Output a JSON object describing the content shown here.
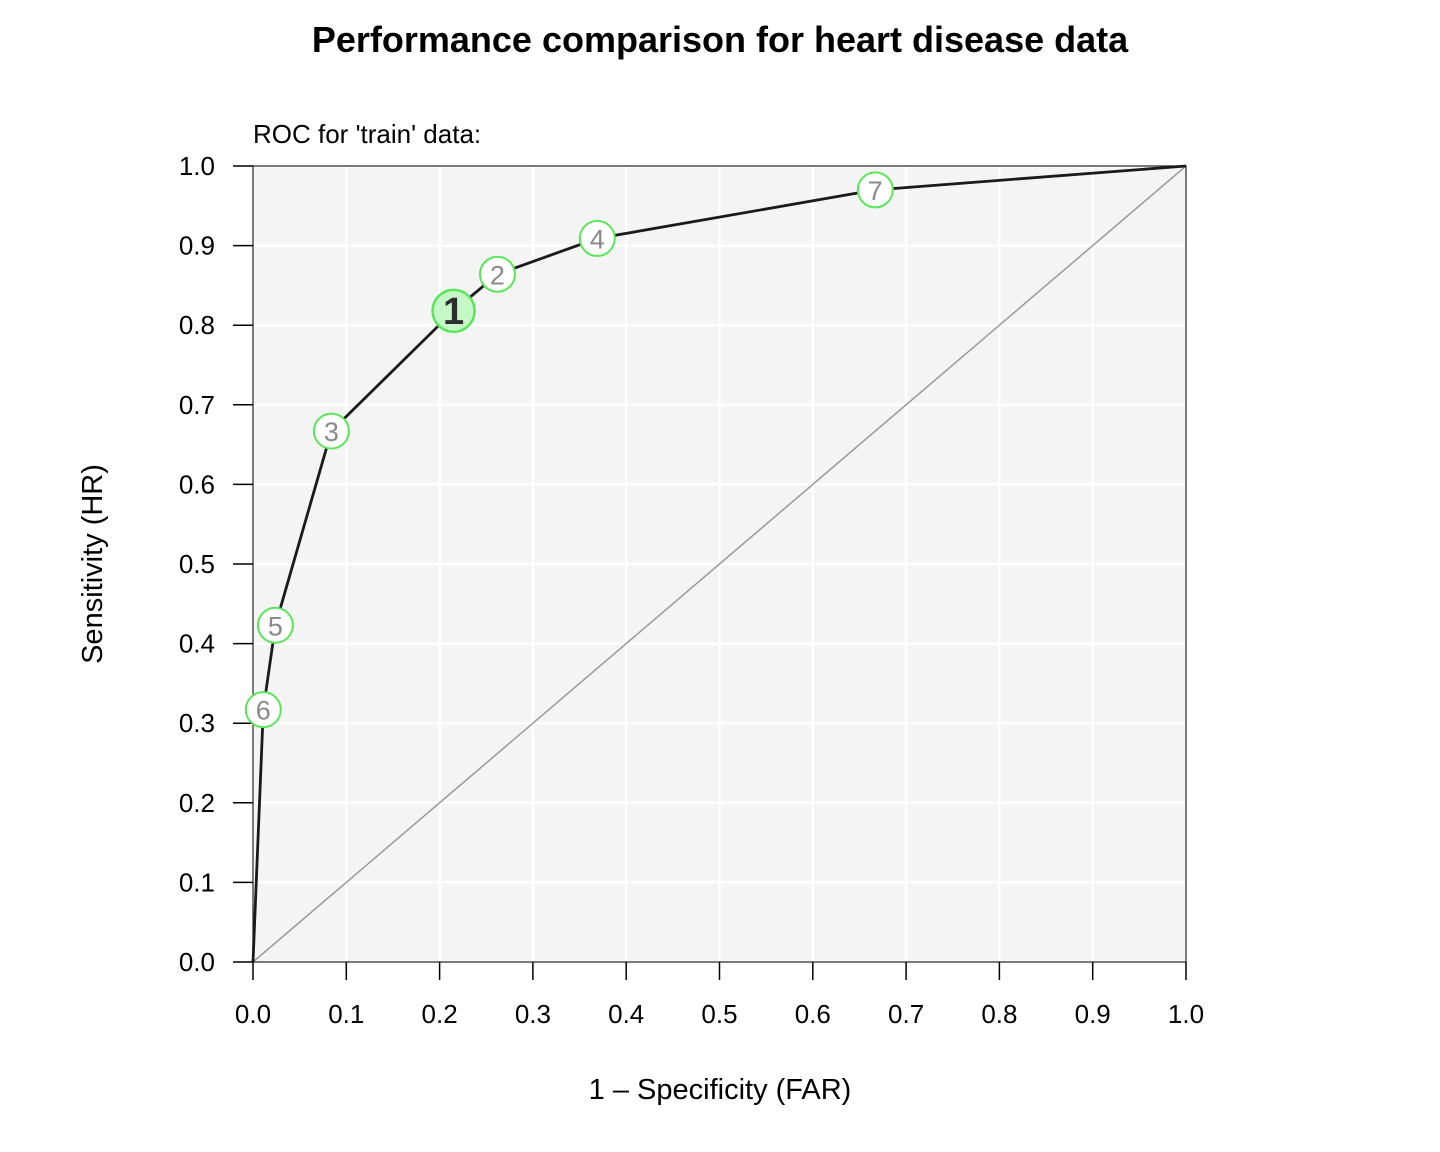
{
  "chart_data": {
    "type": "line",
    "title": "Performance comparison for heart disease data",
    "subtitle": "ROC for 'train' data:",
    "xlabel": "1 – Specificity (FAR)",
    "ylabel": "Sensitivity (HR)",
    "xlim": [
      0,
      1
    ],
    "ylim": [
      0,
      1
    ],
    "x_ticks": [
      "0.0",
      "0.1",
      "0.2",
      "0.3",
      "0.4",
      "0.5",
      "0.6",
      "0.7",
      "0.8",
      "0.9",
      "1.0"
    ],
    "y_ticks": [
      "0.0",
      "0.1",
      "0.2",
      "0.3",
      "0.4",
      "0.5",
      "0.6",
      "0.7",
      "0.8",
      "0.9",
      "1.0"
    ],
    "grid": true,
    "diagonal": true,
    "curve": [
      {
        "x": 0.0,
        "y": 0.0
      },
      {
        "x": 0.011,
        "y": 0.317
      },
      {
        "x": 0.024,
        "y": 0.423
      },
      {
        "x": 0.084,
        "y": 0.667
      },
      {
        "x": 0.215,
        "y": 0.818
      },
      {
        "x": 0.262,
        "y": 0.864
      },
      {
        "x": 0.369,
        "y": 0.909
      },
      {
        "x": 0.667,
        "y": 0.97
      },
      {
        "x": 1.0,
        "y": 1.0
      }
    ],
    "points": [
      {
        "label": "1",
        "x": 0.215,
        "y": 0.818,
        "best": true
      },
      {
        "label": "2",
        "x": 0.262,
        "y": 0.864,
        "best": false
      },
      {
        "label": "3",
        "x": 0.084,
        "y": 0.667,
        "best": false
      },
      {
        "label": "4",
        "x": 0.369,
        "y": 0.909,
        "best": false
      },
      {
        "label": "5",
        "x": 0.024,
        "y": 0.423,
        "best": false
      },
      {
        "label": "6",
        "x": 0.011,
        "y": 0.317,
        "best": false
      },
      {
        "label": "7",
        "x": 0.667,
        "y": 0.97,
        "best": false
      }
    ],
    "colors": {
      "panel": "#f4f4f4",
      "grid": "#ffffff",
      "curve": "#1a1a1a",
      "diagonal": "#999999",
      "marker_stroke": "#59e659",
      "marker_fill_best": "#c6f7c6",
      "marker_fill": "#ffffff"
    }
  }
}
